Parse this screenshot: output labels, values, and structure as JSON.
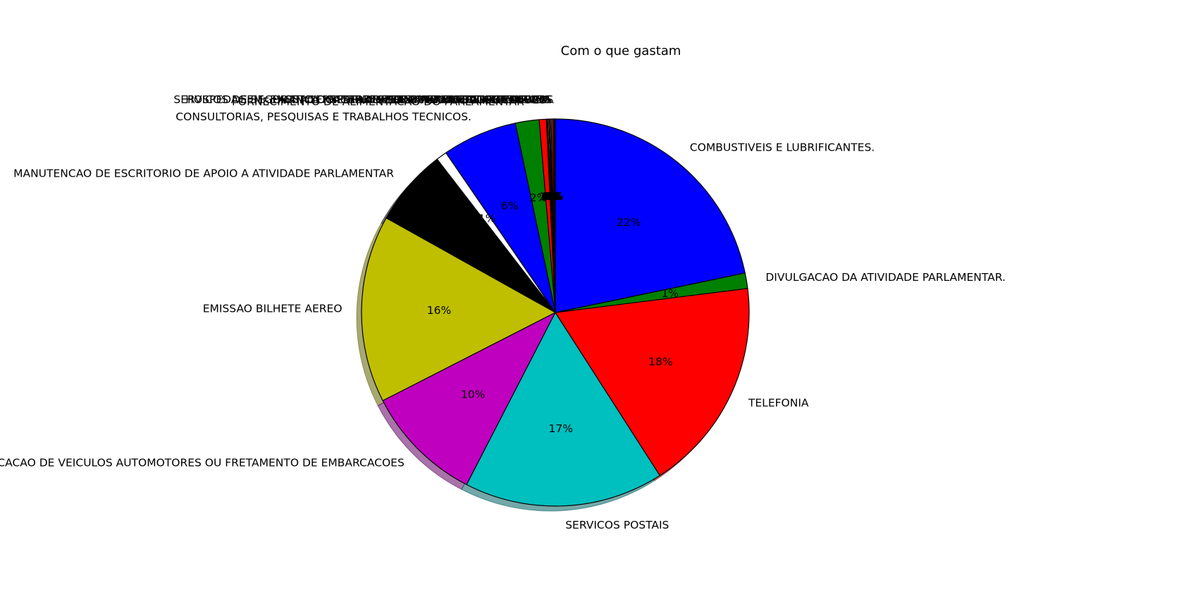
{
  "chart_data": {
    "type": "pie",
    "title": "Com o que gastam",
    "start_angle_deg": 90,
    "direction": "counterclockwise",
    "shadow": true,
    "slices": [
      {
        "label": "SERVICOS DE SEGURANCA PRESTADO POR EMPRESA ESPECIALIZADA.",
        "value": 0.1,
        "pct": "0%",
        "color": "#0000ff"
      },
      {
        "label": "PASSAGENS AEREAS",
        "value": 0.1,
        "pct": "0%",
        "color": "#008000"
      },
      {
        "label": "PASSAGENS TERRESTRES, MARITIMAS OU FLUVIAIS",
        "value": 0.15,
        "pct": "0%",
        "color": "#ff0000"
      },
      {
        "label": "LOCACAO OU FRETAMENTO DE AERONAVES",
        "value": 0.1,
        "pct": "0%",
        "color": "#00bfbf"
      },
      {
        "label": "HOSPEDAGEM ,EXCETO DO PARLAMENTAR NO DISTRITO FEDERAL.",
        "value": 0.1,
        "pct": "0%",
        "color": "#bf00bf"
      },
      {
        "label": "PARTICIPACAO EM CURSO",
        "value": 0.1,
        "pct": "0%",
        "color": "#bfbf00"
      },
      {
        "label": "ASSINATURA DE PUBLICACOES",
        "value": 0.1,
        "pct": "0%",
        "color": "#000000"
      },
      {
        "label": "",
        "value": 0.6,
        "pct": "1%",
        "color": "#ff0000"
      },
      {
        "label": "FORNECIMENTO DE ALIMENTACAO DO PARLAMENTAR",
        "value": 2.0,
        "pct": "2%",
        "color": "#008000"
      },
      {
        "label": "CONSULTORIAS, PESQUISAS E TRABALHOS TECNICOS.",
        "value": 6.3,
        "pct": "6%",
        "color": "#0000ff"
      },
      {
        "label": "",
        "value": 0.9,
        "pct": "1%",
        "color": "#ffffff"
      },
      {
        "label": "MANUTENCAO DE ESCRITORIO DE APOIO A ATIVIDADE PARLAMENTAR",
        "value": 6.5,
        "pct": "",
        "color": "#000000"
      },
      {
        "label": "EMISSAO BILHETE AEREO",
        "value": 15.8,
        "pct": "16%",
        "color": "#bfbf00"
      },
      {
        "label": "LOCACAO DE VEICULOS AUTOMOTORES OU FRETAMENTO DE EMBARCACOES",
        "value": 10.0,
        "pct": "10%",
        "color": "#bf00bf"
      },
      {
        "label": "SERVICOS POSTAIS",
        "value": 16.8,
        "pct": "17%",
        "color": "#00bfbf"
      },
      {
        "label": "TELEFONIA",
        "value": 18.1,
        "pct": "18%",
        "color": "#ff0000"
      },
      {
        "label": "DIVULGACAO DA ATIVIDADE PARLAMENTAR.",
        "value": 1.3,
        "pct": "1%",
        "color": "#008000"
      },
      {
        "label": "COMBUSTIVEIS E LUBRIFICANTES.",
        "value": 21.94,
        "pct": "22%",
        "color": "#0000ff"
      }
    ]
  }
}
